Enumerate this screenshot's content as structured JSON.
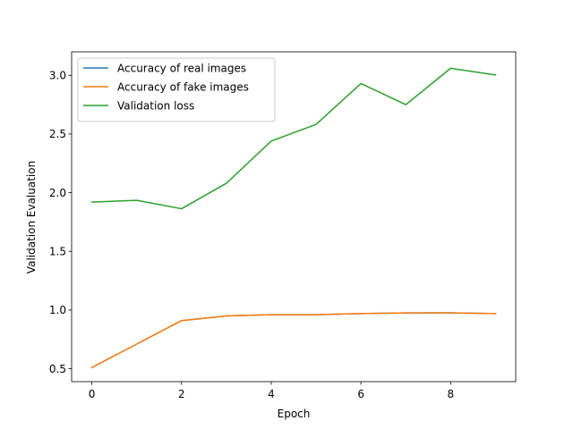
{
  "chart_data": {
    "type": "line",
    "title": "",
    "xlabel": "Epoch",
    "ylabel": "Validation Evaluation",
    "xlim": [
      -0.45,
      9.45
    ],
    "ylim": [
      0.39,
      3.2
    ],
    "xticks": [
      0,
      2,
      4,
      6,
      8
    ],
    "xtick_labels": [
      "0",
      "2",
      "4",
      "6",
      "8"
    ],
    "yticks": [
      0.5,
      1.0,
      1.5,
      2.0,
      2.5,
      3.0
    ],
    "ytick_labels": [
      "0.5",
      "1.0",
      "1.5",
      "2.0",
      "2.5",
      "3.0"
    ],
    "grid": false,
    "legend_position": "top-left",
    "x": [
      0,
      1,
      2,
      3,
      4,
      5,
      6,
      7,
      8,
      9
    ],
    "series": [
      {
        "name": "Accuracy of real images",
        "color": "#1f77b4",
        "values": [
          0.51,
          0.71,
          0.91,
          0.95,
          0.96,
          0.96,
          0.97,
          0.975,
          0.976,
          0.97
        ]
      },
      {
        "name": "Accuracy of fake images",
        "color": "#ff7f0e",
        "values": [
          0.51,
          0.71,
          0.91,
          0.95,
          0.96,
          0.96,
          0.97,
          0.975,
          0.976,
          0.97
        ]
      },
      {
        "name": "Validation loss",
        "color": "#2ca02c",
        "values": [
          1.92,
          1.935,
          1.863,
          2.08,
          2.44,
          2.582,
          2.93,
          2.75,
          3.06,
          3.003
        ]
      }
    ]
  }
}
